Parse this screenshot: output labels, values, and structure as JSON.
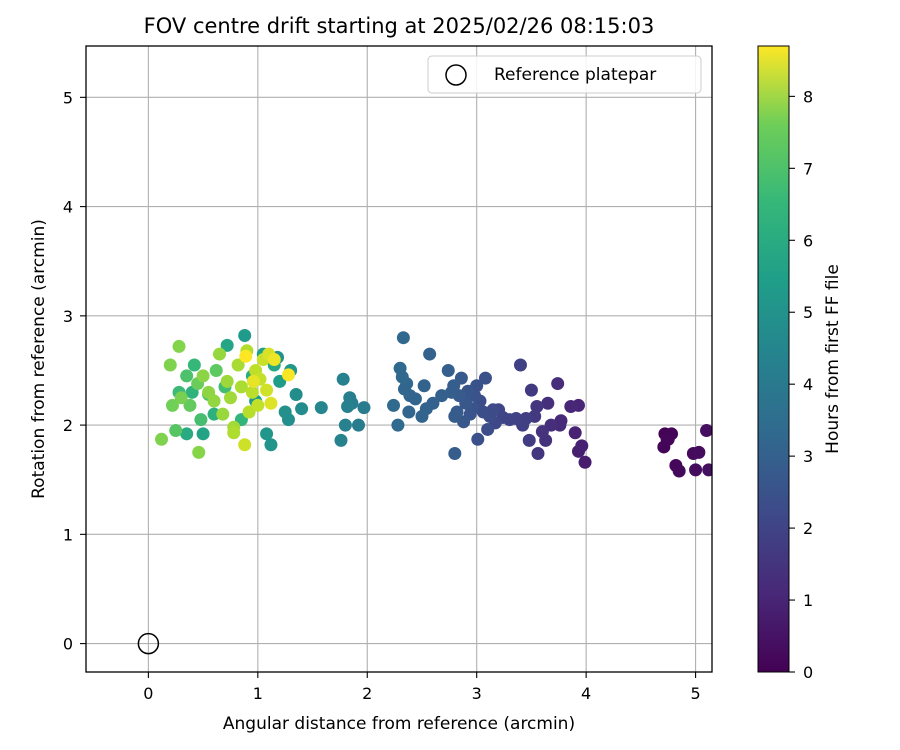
{
  "chart_data": {
    "type": "scatter",
    "title": "FOV centre drift starting at 2025/02/26 08:15:03",
    "xlabel": "Angular distance from reference (arcmin)",
    "ylabel": "Rotation from reference (arcmin)",
    "xlim": [
      -0.57,
      5.15
    ],
    "ylim": [
      -0.26,
      5.47
    ],
    "xticks": [
      0,
      1,
      2,
      3,
      4,
      5
    ],
    "yticks": [
      0,
      1,
      2,
      3,
      4,
      5
    ],
    "grid": true,
    "legend": {
      "entries": [
        "Reference platepar"
      ],
      "placement": "top-right"
    },
    "colorbar": {
      "label": "Hours from first FF file",
      "colormap": "viridis",
      "range": [
        0,
        8.7
      ],
      "ticks": [
        0,
        1,
        2,
        3,
        4,
        5,
        6,
        7,
        8
      ]
    },
    "reference_point": {
      "x": 0,
      "y": 0,
      "marker": "open-circle",
      "color": "#000000"
    },
    "series": [
      {
        "columns": [
          "x",
          "y",
          "hours"
        ],
        "points": [
          [
            4.72,
            1.92,
            0.02
          ],
          [
            4.75,
            1.87,
            0.04
          ],
          [
            4.71,
            1.8,
            0.07
          ],
          [
            4.78,
            1.92,
            0.1
          ],
          [
            4.74,
            1.87,
            0.13
          ],
          [
            4.82,
            1.63,
            0.16
          ],
          [
            4.85,
            1.58,
            0.19
          ],
          [
            4.98,
            1.74,
            0.22
          ],
          [
            5.03,
            1.75,
            0.25
          ],
          [
            5.0,
            1.59,
            0.28
          ],
          [
            5.1,
            1.95,
            0.31
          ],
          [
            5.12,
            1.59,
            0.34
          ],
          [
            3.99,
            1.66,
            0.7
          ],
          [
            3.93,
            1.76,
            0.75
          ],
          [
            3.96,
            1.81,
            0.8
          ],
          [
            3.9,
            1.93,
            0.85
          ],
          [
            3.93,
            2.18,
            0.9
          ],
          [
            3.86,
            2.17,
            0.95
          ],
          [
            3.77,
            2.04,
            1.0
          ],
          [
            3.76,
            2.0,
            1.05
          ],
          [
            3.74,
            2.38,
            1.1
          ],
          [
            3.68,
            2.0,
            1.15
          ],
          [
            3.65,
            2.2,
            1.2
          ],
          [
            3.63,
            1.86,
            1.25
          ],
          [
            3.6,
            1.94,
            1.3
          ],
          [
            3.56,
            1.74,
            1.35
          ],
          [
            3.55,
            2.17,
            1.4
          ],
          [
            3.53,
            2.08,
            1.45
          ],
          [
            3.5,
            2.32,
            1.5
          ],
          [
            3.48,
            1.86,
            1.55
          ],
          [
            3.45,
            2.06,
            1.6
          ],
          [
            3.42,
            2.0,
            1.65
          ],
          [
            3.4,
            2.55,
            1.7
          ],
          [
            3.36,
            2.06,
            1.72
          ],
          [
            3.3,
            2.05,
            1.75
          ],
          [
            3.24,
            2.07,
            1.8
          ],
          [
            3.2,
            2.14,
            1.85
          ],
          [
            3.17,
            2.02,
            1.9
          ],
          [
            3.15,
            2.14,
            1.95
          ],
          [
            3.12,
            2.08,
            2.0
          ],
          [
            3.1,
            1.96,
            2.05
          ],
          [
            3.06,
            2.12,
            2.08
          ],
          [
            3.03,
            2.22,
            2.1
          ],
          [
            3.01,
            1.87,
            2.15
          ],
          [
            3.0,
            2.36,
            2.2
          ],
          [
            2.98,
            2.27,
            2.24
          ],
          [
            2.96,
            2.15,
            2.28
          ],
          [
            2.94,
            2.1,
            2.3
          ],
          [
            2.92,
            2.31,
            2.35
          ],
          [
            2.9,
            2.2,
            2.38
          ],
          [
            2.88,
            2.03,
            2.4
          ],
          [
            2.86,
            2.43,
            2.44
          ],
          [
            2.84,
            2.27,
            2.48
          ],
          [
            2.82,
            2.12,
            2.5
          ],
          [
            2.8,
            2.08,
            2.52
          ],
          [
            2.8,
            1.74,
            2.55
          ],
          [
            2.79,
            2.36,
            2.58
          ],
          [
            2.77,
            2.3,
            2.6
          ],
          [
            2.74,
            2.5,
            2.62
          ],
          [
            3.08,
            2.43,
            2.18
          ],
          [
            2.68,
            2.27,
            2.65
          ],
          [
            2.6,
            2.2,
            2.68
          ],
          [
            2.57,
            2.65,
            2.7
          ],
          [
            2.54,
            2.15,
            2.72
          ],
          [
            2.52,
            2.36,
            2.75
          ],
          [
            2.5,
            2.08,
            2.78
          ],
          [
            2.44,
            2.24,
            2.8
          ],
          [
            2.39,
            2.27,
            2.82
          ],
          [
            2.38,
            2.12,
            2.84
          ],
          [
            2.36,
            2.38,
            2.86
          ],
          [
            2.34,
            2.33,
            2.88
          ],
          [
            2.33,
            2.8,
            2.9
          ],
          [
            2.32,
            2.44,
            2.92
          ],
          [
            2.3,
            2.52,
            2.95
          ],
          [
            2.28,
            2.0,
            2.97
          ],
          [
            2.24,
            2.18,
            3.0
          ],
          [
            1.97,
            2.16,
            3.6
          ],
          [
            1.92,
            2.0,
            3.65
          ],
          [
            1.86,
            2.2,
            3.7
          ],
          [
            1.84,
            2.25,
            3.75
          ],
          [
            1.82,
            2.17,
            3.8
          ],
          [
            1.8,
            2.0,
            3.82
          ],
          [
            1.78,
            2.42,
            3.85
          ],
          [
            1.76,
            1.86,
            3.9
          ],
          [
            1.58,
            2.16,
            4.05
          ],
          [
            1.4,
            2.15,
            4.2
          ],
          [
            1.35,
            2.28,
            4.25
          ],
          [
            1.28,
            2.05,
            4.3
          ],
          [
            1.25,
            2.12,
            4.35
          ],
          [
            1.18,
            2.62,
            4.4
          ],
          [
            1.12,
            1.82,
            4.5
          ],
          [
            1.08,
            1.92,
            4.55
          ],
          [
            1.3,
            2.5,
            4.6
          ],
          [
            0.88,
            2.82,
            4.7
          ],
          [
            0.98,
            2.22,
            4.75
          ],
          [
            1.2,
            2.4,
            4.8
          ],
          [
            1.05,
            2.65,
            4.9
          ],
          [
            0.5,
            1.92,
            5.0
          ],
          [
            0.72,
            2.73,
            5.1
          ],
          [
            1.15,
            2.55,
            5.2
          ],
          [
            0.35,
            1.92,
            5.3
          ],
          [
            0.95,
            2.45,
            5.4
          ],
          [
            0.6,
            2.1,
            5.5
          ],
          [
            0.4,
            2.3,
            5.6
          ],
          [
            0.85,
            2.05,
            5.7
          ],
          [
            0.42,
            2.55,
            5.8
          ],
          [
            0.28,
            2.3,
            5.9
          ],
          [
            0.7,
            2.35,
            6.0
          ],
          [
            0.48,
            2.05,
            6.1
          ],
          [
            0.35,
            2.45,
            6.2
          ],
          [
            0.55,
            2.28,
            6.3
          ],
          [
            0.25,
            1.95,
            6.4
          ],
          [
            0.62,
            2.5,
            6.5
          ],
          [
            0.38,
            2.18,
            6.6
          ],
          [
            0.45,
            2.38,
            6.7
          ],
          [
            0.22,
            2.18,
            6.8
          ],
          [
            0.3,
            2.25,
            6.9
          ],
          [
            0.12,
            1.87,
            7.0
          ],
          [
            0.2,
            2.55,
            7.0
          ],
          [
            0.28,
            2.72,
            7.05
          ],
          [
            0.46,
            1.75,
            7.1
          ],
          [
            0.5,
            2.45,
            7.15
          ],
          [
            0.55,
            2.3,
            7.2
          ],
          [
            0.6,
            2.22,
            7.25
          ],
          [
            0.65,
            2.65,
            7.3
          ],
          [
            0.68,
            2.1,
            7.35
          ],
          [
            0.72,
            2.4,
            7.4
          ],
          [
            0.75,
            2.25,
            7.45
          ],
          [
            0.78,
            1.98,
            7.5
          ],
          [
            0.82,
            2.55,
            7.55
          ],
          [
            0.85,
            2.35,
            7.6
          ],
          [
            0.78,
            1.93,
            7.65
          ],
          [
            0.9,
            2.68,
            7.7
          ],
          [
            0.92,
            2.12,
            7.75
          ],
          [
            0.95,
            2.3,
            7.8
          ],
          [
            0.98,
            2.5,
            7.85
          ],
          [
            1.0,
            2.18,
            7.9
          ],
          [
            1.02,
            2.42,
            7.95
          ],
          [
            1.05,
            2.6,
            8.0
          ],
          [
            0.88,
            1.82,
            8.05
          ],
          [
            1.08,
            2.32,
            8.1
          ],
          [
            1.1,
            2.65,
            8.2
          ],
          [
            1.12,
            2.2,
            8.3
          ],
          [
            0.96,
            2.4,
            8.4
          ],
          [
            1.15,
            2.6,
            8.5
          ],
          [
            1.28,
            2.46,
            8.6
          ],
          [
            0.89,
            2.63,
            8.7
          ]
        ]
      }
    ]
  }
}
